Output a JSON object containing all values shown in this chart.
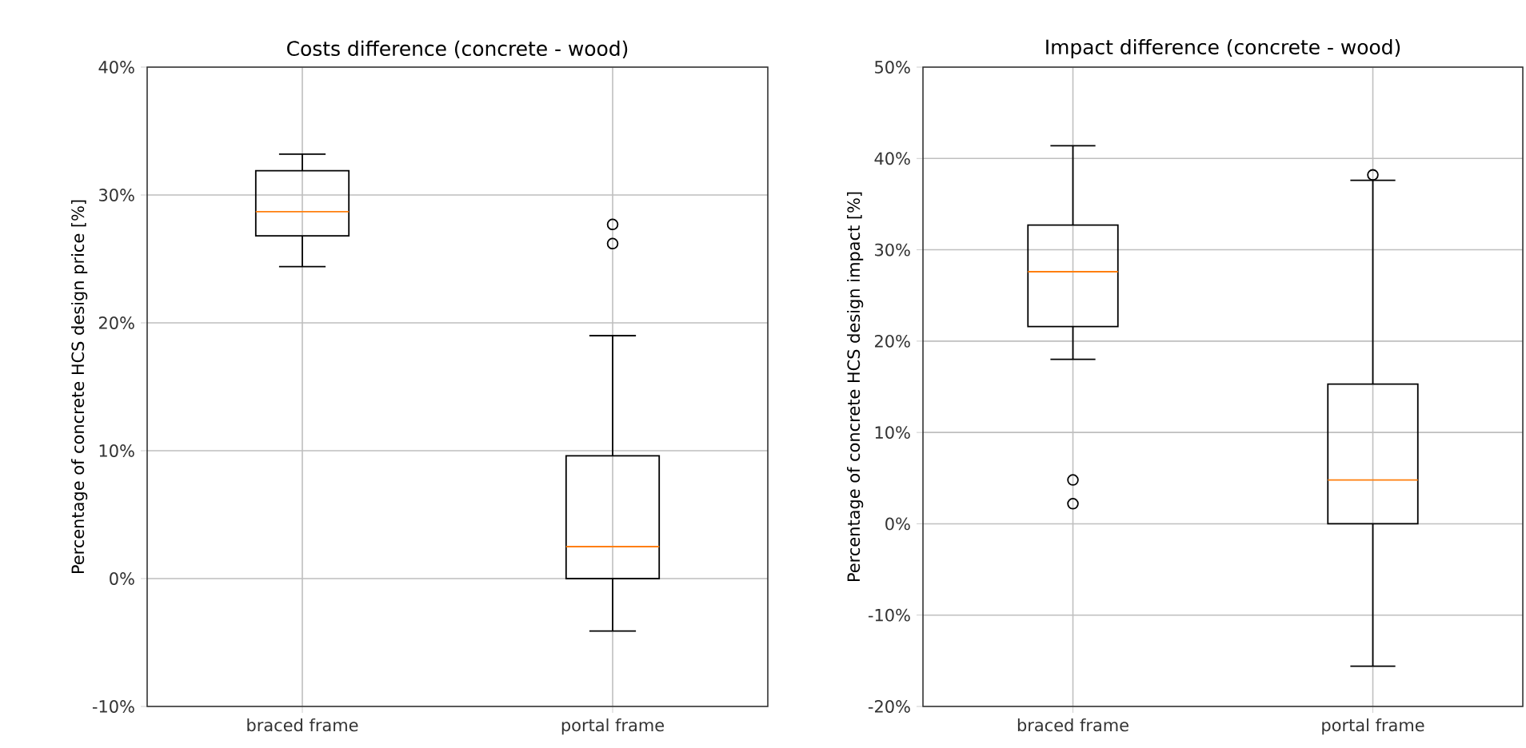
{
  "chart_data": [
    {
      "type": "box",
      "title": "Costs difference (concrete - wood)",
      "ylabel": "Percentage of concrete HCS design price [%]",
      "categories": [
        "braced frame",
        "portal frame"
      ],
      "boxes": [
        {
          "low": 24.4,
          "q1": 26.8,
          "median": 28.7,
          "q3": 31.9,
          "high": 33.2
        },
        {
          "low": -4.1,
          "q1": 0,
          "median": 2.5,
          "q3": 9.6,
          "high": 19.0,
          "outliers": [
            27.7,
            26.2
          ]
        }
      ],
      "ylim": [
        -10,
        40
      ],
      "yticks": [
        {
          "value": -10,
          "label": "-10%"
        },
        {
          "value": 0,
          "label": "0%"
        },
        {
          "value": 10,
          "label": "10%"
        },
        {
          "value": 20,
          "label": "20%"
        },
        {
          "value": 30,
          "label": "30%"
        },
        {
          "value": 40,
          "label": "40%"
        }
      ],
      "grid": true,
      "marker": "circle"
    },
    {
      "type": "box",
      "title": "Impact difference (concrete - wood)",
      "ylabel": "Percentage of concrete HCS design impact [%]",
      "categories": [
        "braced frame",
        "portal frame"
      ],
      "boxes": [
        {
          "low": 18.0,
          "q1": 21.6,
          "median": 27.6,
          "q3": 32.7,
          "high": 41.4,
          "outliers": [
            4.8,
            2.2
          ]
        },
        {
          "low": -15.6,
          "q1": 0,
          "median": 4.8,
          "q3": 15.3,
          "high": 37.6,
          "outliers": [
            38.2
          ]
        }
      ],
      "ylim": [
        -20,
        50
      ],
      "yticks": [
        {
          "value": -20,
          "label": "-20%"
        },
        {
          "value": -10,
          "label": "-10%"
        },
        {
          "value": 0,
          "label": "0%"
        },
        {
          "value": 10,
          "label": "10%"
        },
        {
          "value": 20,
          "label": "20%"
        },
        {
          "value": 30,
          "label": "30%"
        },
        {
          "value": 40,
          "label": "40%"
        },
        {
          "value": 50,
          "label": "50%"
        }
      ],
      "grid": true,
      "marker": "circle"
    }
  ]
}
